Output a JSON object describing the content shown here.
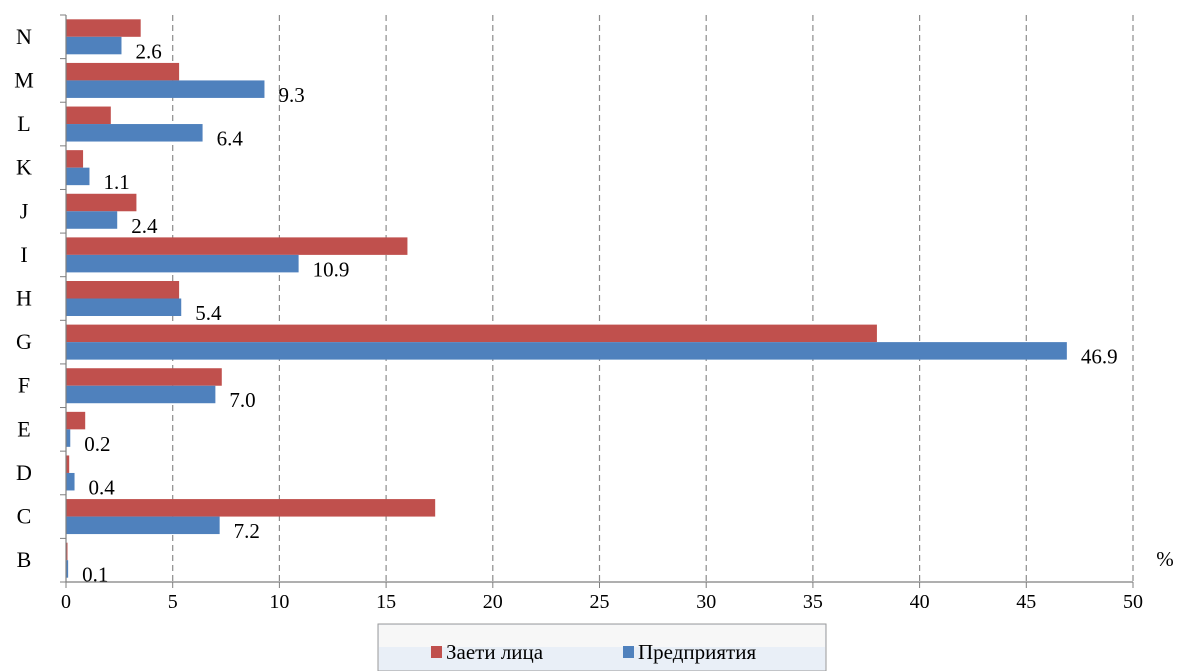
{
  "chart_data": {
    "type": "bar",
    "orientation": "horizontal",
    "categories": [
      "N",
      "M",
      "L",
      "K",
      "J",
      "I",
      "H",
      "G",
      "F",
      "E",
      "D",
      "C",
      "B"
    ],
    "series": [
      {
        "name": "Заети лица",
        "color": "#C0504D",
        "values": [
          3.5,
          5.3,
          2.1,
          0.8,
          3.3,
          16.0,
          5.3,
          38.0,
          7.3,
          0.9,
          0.15,
          17.3,
          0.05
        ]
      },
      {
        "name": "Предприятия",
        "color": "#4F81BD",
        "values": [
          2.6,
          9.3,
          6.4,
          1.1,
          2.4,
          10.9,
          5.4,
          46.9,
          7.0,
          0.2,
          0.4,
          7.2,
          0.1
        ]
      }
    ],
    "data_labels": [
      "2.6",
      "9.3",
      "6.4",
      "1.1",
      "2.4",
      "10.9",
      "5.4",
      "46.9",
      "7.0",
      "0.2",
      "0.4",
      "7.2",
      "0.1"
    ],
    "x_ticks": [
      "0",
      "5",
      "10",
      "15",
      "20",
      "25",
      "30",
      "35",
      "40",
      "45",
      "50"
    ],
    "xlim": [
      0,
      50
    ],
    "unit": "%",
    "grid": "vertical-dashed",
    "legend_position": "bottom"
  }
}
